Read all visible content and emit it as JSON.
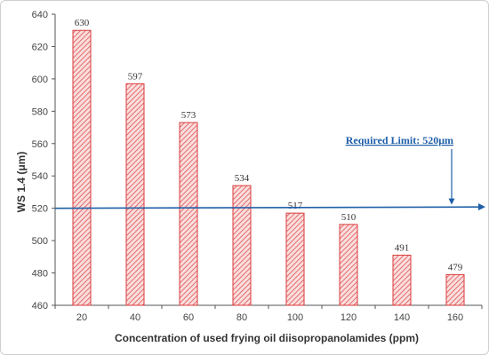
{
  "chart_data": {
    "type": "bar",
    "categories": [
      "20",
      "40",
      "60",
      "80",
      "100",
      "120",
      "140",
      "160"
    ],
    "values": [
      630,
      597,
      573,
      534,
      517,
      510,
      491,
      479
    ],
    "data_labels": [
      "630",
      "597",
      "573",
      "534",
      "517",
      "510",
      "491",
      "479"
    ],
    "xlabel": "Concentration of used frying oil diisopropanolamides (ppm)",
    "ylabel": "WS 1.4 (μm)",
    "ylim": [
      460,
      640
    ],
    "yticks": [
      "460",
      "480",
      "500",
      "520",
      "540",
      "560",
      "580",
      "600",
      "620",
      "640"
    ],
    "grid": false,
    "legend": "none",
    "bar_fill": "#f7d6d6",
    "bar_stroke": "#d93a3a",
    "bar_hatch": "#e05050",
    "reference_line": {
      "value": 520,
      "label": "Required Limit: 520μm",
      "color": "#1f5fa8"
    }
  }
}
